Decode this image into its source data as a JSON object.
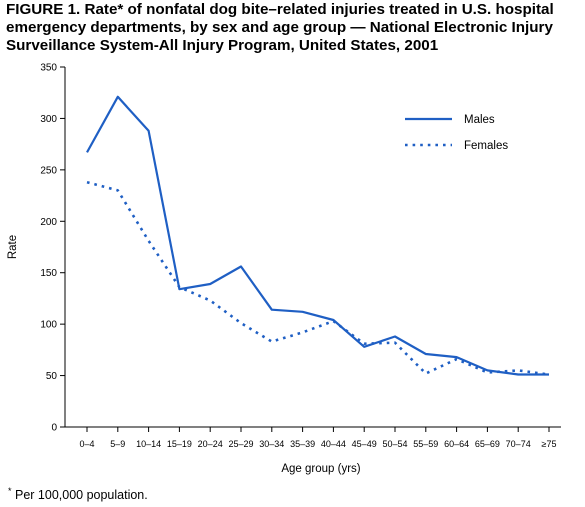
{
  "title": "FIGURE 1. Rate* of nonfatal dog bite–related injuries treated in U.S. hospital emergency departments, by sex and age group — National Electronic Injury Surveillance System-All Injury Program, United States, 2001",
  "footnote": {
    "marker": "*",
    "text": " Per 100,000 population."
  },
  "chart_data": {
    "type": "line",
    "title": "",
    "xlabel": "Age group (yrs)",
    "ylabel": "Rate",
    "ylim": [
      0,
      350
    ],
    "yticks": [
      0,
      50,
      100,
      150,
      200,
      250,
      300,
      350
    ],
    "grid": false,
    "legend_position": "top-right",
    "categories": [
      "0–4",
      "5–9",
      "10–14",
      "15–19",
      "20–24",
      "25–29",
      "30–34",
      "35–39",
      "40–44",
      "45–49",
      "50–54",
      "55–59",
      "60–64",
      "65–69",
      "70–74",
      "≥75"
    ],
    "series": [
      {
        "name": "Males",
        "style": "solid",
        "color": "#1f5fc4",
        "values": [
          267,
          321,
          288,
          134,
          139,
          156,
          114,
          112,
          104,
          78,
          88,
          71,
          68,
          55,
          51,
          51
        ]
      },
      {
        "name": "Females",
        "style": "dotted",
        "color": "#1f5fc4",
        "values": [
          238,
          230,
          181,
          136,
          123,
          101,
          83,
          92,
          103,
          81,
          82,
          52,
          66,
          53,
          55,
          51
        ]
      }
    ]
  }
}
